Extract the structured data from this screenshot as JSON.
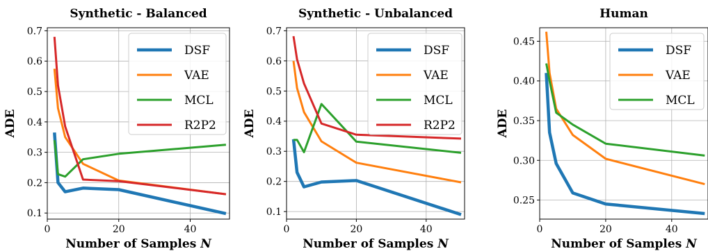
{
  "chart_data": [
    {
      "type": "line",
      "title": "Synthetic - Balanced",
      "xlabel": "Number of Samples N",
      "ylabel": "ADE",
      "xlim": [
        0,
        51
      ],
      "ylim": [
        0.08,
        0.71
      ],
      "xticks": [
        0,
        20,
        40
      ],
      "yticks": [
        0.1,
        0.2,
        0.3,
        0.4,
        0.5,
        0.6,
        0.7
      ],
      "grid": true,
      "legend": "top-right",
      "series": [
        {
          "name": "DSF",
          "color": "#1f77b4",
          "x": [
            2,
            3,
            5,
            10,
            20,
            50
          ],
          "y": [
            0.365,
            0.2,
            0.17,
            0.182,
            0.177,
            0.098
          ]
        },
        {
          "name": "VAE",
          "color": "#ff7f0e",
          "x": [
            2,
            3,
            5,
            10,
            20,
            50
          ],
          "y": [
            0.575,
            0.445,
            0.35,
            0.262,
            0.207,
            0.162
          ]
        },
        {
          "name": "MCL",
          "color": "#2ca02c",
          "x": [
            2,
            3,
            5,
            10,
            20,
            50
          ],
          "y": [
            0.34,
            0.228,
            0.22,
            0.277,
            0.295,
            0.325
          ]
        },
        {
          "name": "R2P2",
          "color": "#d62728",
          "x": [
            2,
            3,
            5,
            10,
            20,
            50
          ],
          "y": [
            0.68,
            0.52,
            0.385,
            0.21,
            0.205,
            0.162
          ]
        }
      ]
    },
    {
      "type": "line",
      "title": "Synthetic - Unbalanced",
      "xlabel": "Number of Samples N",
      "ylabel": "ADE",
      "xlim": [
        0,
        51
      ],
      "ylim": [
        0.075,
        0.71
      ],
      "xticks": [
        0,
        20,
        40
      ],
      "yticks": [
        0.1,
        0.2,
        0.3,
        0.4,
        0.5,
        0.6,
        0.7
      ],
      "grid": true,
      "legend": "top-right",
      "series": [
        {
          "name": "DSF",
          "color": "#1f77b4",
          "x": [
            2,
            3,
            5,
            10,
            20,
            50
          ],
          "y": [
            0.34,
            0.23,
            0.182,
            0.198,
            0.203,
            0.09
          ]
        },
        {
          "name": "VAE",
          "color": "#ff7f0e",
          "x": [
            2,
            3,
            5,
            10,
            20,
            50
          ],
          "y": [
            0.6,
            0.51,
            0.43,
            0.333,
            0.262,
            0.197
          ]
        },
        {
          "name": "MCL",
          "color": "#2ca02c",
          "x": [
            2,
            3,
            5,
            10,
            20,
            50
          ],
          "y": [
            0.338,
            0.338,
            0.297,
            0.457,
            0.332,
            0.295
          ]
        },
        {
          "name": "R2P2",
          "color": "#d62728",
          "x": [
            2,
            3,
            5,
            10,
            20,
            50
          ],
          "y": [
            0.682,
            0.605,
            0.525,
            0.392,
            0.355,
            0.342
          ]
        }
      ]
    },
    {
      "type": "line",
      "title": "Human",
      "xlabel": "Number of Samples N",
      "ylabel": "ADE",
      "xlim": [
        0,
        51
      ],
      "ylim": [
        0.226,
        0.467
      ],
      "xticks": [
        0,
        20,
        40
      ],
      "yticks": [
        0.25,
        0.3,
        0.35,
        0.4,
        0.45
      ],
      "grid": true,
      "legend": "top-right",
      "series": [
        {
          "name": "DSF",
          "color": "#1f77b4",
          "x": [
            2,
            3,
            5,
            10,
            20,
            50
          ],
          "y": [
            0.41,
            0.335,
            0.296,
            0.259,
            0.245,
            0.233
          ]
        },
        {
          "name": "VAE",
          "color": "#ff7f0e",
          "x": [
            2,
            3,
            5,
            10,
            20,
            50
          ],
          "y": [
            0.462,
            0.41,
            0.365,
            0.332,
            0.302,
            0.27
          ]
        },
        {
          "name": "MCL",
          "color": "#2ca02c",
          "x": [
            2,
            3,
            5,
            10,
            20,
            50
          ],
          "y": [
            0.422,
            0.4,
            0.36,
            0.345,
            0.321,
            0.306
          ]
        }
      ]
    }
  ]
}
